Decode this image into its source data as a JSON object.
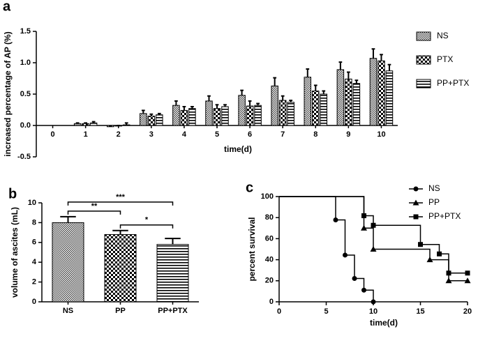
{
  "chart_data": [
    {
      "type": "bar",
      "panel_label": "a",
      "xlabel": "time(d)",
      "ylabel": "increased percentage of AP (%)",
      "categories": [
        "0",
        "1",
        "2",
        "3",
        "4",
        "5",
        "6",
        "7",
        "8",
        "9",
        "10"
      ],
      "ylim": [
        -0.5,
        1.5
      ],
      "yticks": [
        -0.5,
        {
          "value": 0,
          "label": "0.0"
        },
        0.5,
        {
          "value": 1,
          "label": "1.0"
        },
        1.5
      ],
      "legend": "right",
      "series": [
        {
          "name": "NS",
          "color": "#333333",
          "pattern": "fine-check",
          "values": [
            null,
            0.03,
            -0.02,
            0.19,
            0.32,
            0.39,
            0.48,
            0.63,
            0.77,
            0.89,
            1.07
          ],
          "errors": [
            null,
            0.01,
            0.01,
            0.05,
            0.07,
            0.08,
            0.08,
            0.13,
            0.13,
            0.12,
            0.15
          ]
        },
        {
          "name": "PTX",
          "color": "#000000",
          "pattern": "check",
          "values": [
            null,
            0.03,
            -0.01,
            0.15,
            0.24,
            0.27,
            0.31,
            0.4,
            0.55,
            0.74,
            1.03
          ],
          "errors": [
            null,
            0.01,
            0.01,
            0.03,
            0.06,
            0.06,
            0.08,
            0.07,
            0.09,
            0.11,
            0.1
          ]
        },
        {
          "name": "PP+PTX",
          "color": "#000000",
          "pattern": "h-stripes",
          "values": [
            null,
            0.04,
            0.01,
            0.17,
            0.27,
            0.3,
            0.32,
            0.37,
            0.5,
            0.67,
            0.87
          ],
          "errors": [
            null,
            0.02,
            0.03,
            0.02,
            0.03,
            0.03,
            0.03,
            0.03,
            0.05,
            0.05,
            0.1
          ]
        }
      ]
    },
    {
      "type": "bar",
      "panel_label": "b",
      "ylabel": "volume of ascites (mL)",
      "categories": [
        "NS",
        "PP",
        "PP+PTX"
      ],
      "values": [
        8.0,
        6.8,
        5.8
      ],
      "errors": [
        0.6,
        0.4,
        0.6
      ],
      "patterns": [
        "fine-check",
        "check",
        "h-stripes"
      ],
      "ylim": [
        0,
        10
      ],
      "yticks": [
        0,
        2,
        4,
        6,
        8,
        10
      ],
      "brackets": [
        {
          "label": "**",
          "from": "NS",
          "to": "PP"
        },
        {
          "label": "*",
          "from": "PP",
          "to": "PP+PTX"
        },
        {
          "label": "***",
          "from": "NS",
          "to": "PP+PTX"
        }
      ]
    },
    {
      "type": "step",
      "panel_label": "c",
      "xlabel": "time(d)",
      "ylabel": "percent survival",
      "xlim": [
        0,
        20
      ],
      "xticks": [
        0,
        5,
        10,
        15,
        20
      ],
      "ylim": [
        0,
        100
      ],
      "yticks": [
        0,
        20,
        40,
        60,
        80,
        100
      ],
      "legend": "upper right",
      "series": [
        {
          "name": "NS",
          "color": "#000000",
          "marker": "circle",
          "x": [
            0,
            6,
            7,
            8,
            9,
            10
          ],
          "values": [
            100,
            77.8,
            44.4,
            22.2,
            11.1,
            0
          ]
        },
        {
          "name": "PP",
          "color": "#000000",
          "marker": "triangle",
          "x": [
            0,
            9,
            10,
            16,
            18,
            20
          ],
          "values": [
            100,
            70,
            50,
            40,
            20,
            20
          ]
        },
        {
          "name": "PP+PTX",
          "color": "#000000",
          "marker": "square",
          "x": [
            0,
            9,
            10,
            15,
            17,
            18,
            20
          ],
          "values": [
            100,
            81.8,
            72.7,
            54.5,
            45.5,
            27.3,
            27.3
          ]
        }
      ]
    }
  ]
}
